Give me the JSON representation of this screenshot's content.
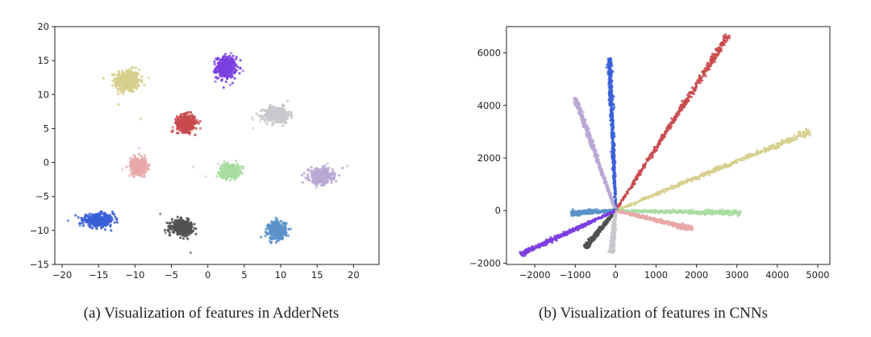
{
  "figure": {
    "captions": {
      "a": "(a) Visualization of features in AdderNets",
      "b": "(b) Visualization of features in CNNs"
    }
  },
  "chart_data": [
    {
      "type": "scatter",
      "title": "",
      "xlabel": "",
      "ylabel": "",
      "xlim": [
        -21,
        23.5
      ],
      "ylim": [
        -15,
        20
      ],
      "xticks": [
        -20,
        -15,
        -10,
        -5,
        0,
        5,
        10,
        15,
        20
      ],
      "yticks": [
        -15,
        -10,
        -5,
        0,
        5,
        10,
        15,
        20
      ],
      "grid": false,
      "series": [
        {
          "color": "#d6cf8c",
          "center": [
            -11,
            12
          ],
          "spread": [
            1.5,
            1.5
          ]
        },
        {
          "color": "#7b3fe0",
          "center": [
            2.5,
            14
          ],
          "spread": [
            1.2,
            1.4
          ]
        },
        {
          "color": "#c8c8cc",
          "center": [
            9.5,
            7
          ],
          "spread": [
            1.6,
            1.1
          ]
        },
        {
          "color": "#c94a4e",
          "center": [
            -3,
            5.8
          ],
          "spread": [
            1.1,
            1.1
          ]
        },
        {
          "color": "#e8a8a8",
          "center": [
            -9.5,
            -0.5
          ],
          "spread": [
            1.0,
            1.1
          ]
        },
        {
          "color": "#a8dca0",
          "center": [
            3,
            -1.2
          ],
          "spread": [
            1.2,
            0.9
          ]
        },
        {
          "color": "#b8a8d4",
          "center": [
            15.5,
            -2
          ],
          "spread": [
            1.5,
            1.0
          ]
        },
        {
          "color": "#3a5fd8",
          "center": [
            -15,
            -8.5
          ],
          "spread": [
            1.9,
            0.8
          ]
        },
        {
          "color": "#505050",
          "center": [
            -3.5,
            -9.5
          ],
          "spread": [
            1.3,
            0.9
          ]
        },
        {
          "color": "#5b93c9",
          "center": [
            9.5,
            -10
          ],
          "spread": [
            1.1,
            1.2
          ]
        }
      ]
    },
    {
      "type": "scatter",
      "title": "",
      "xlabel": "",
      "ylabel": "",
      "xlim": [
        -2700,
        5300
      ],
      "ylim": [
        -2050,
        7000
      ],
      "xticks": [
        -2000,
        -1000,
        0,
        1000,
        2000,
        3000,
        4000,
        5000
      ],
      "yticks": [
        -2000,
        0,
        2000,
        4000,
        6000
      ],
      "grid": false,
      "series": [
        {
          "color": "#c94a4e",
          "end": [
            2800,
            6700
          ],
          "width": 130
        },
        {
          "color": "#d6cf8c",
          "end": [
            4800,
            3000
          ],
          "width": 130
        },
        {
          "color": "#a8dca0",
          "end": [
            3100,
            -100
          ],
          "width": 60
        },
        {
          "color": "#e8a8a8",
          "end": [
            1900,
            -700
          ],
          "width": 70
        },
        {
          "color": "#3a5fd8",
          "end": [
            -150,
            5800
          ],
          "width": 40
        },
        {
          "color": "#b8a8d4",
          "end": [
            -1000,
            4300
          ],
          "width": 110
        },
        {
          "color": "#5b93c9",
          "end": [
            -1100,
            -100
          ],
          "width": 60
        },
        {
          "color": "#505050",
          "end": [
            -750,
            -1400
          ],
          "width": 60
        },
        {
          "color": "#c8c8cc",
          "end": [
            -100,
            -1600
          ],
          "width": 60
        },
        {
          "color": "#7b3fe0",
          "end": [
            -2350,
            -1650
          ],
          "width": 70
        }
      ]
    }
  ]
}
